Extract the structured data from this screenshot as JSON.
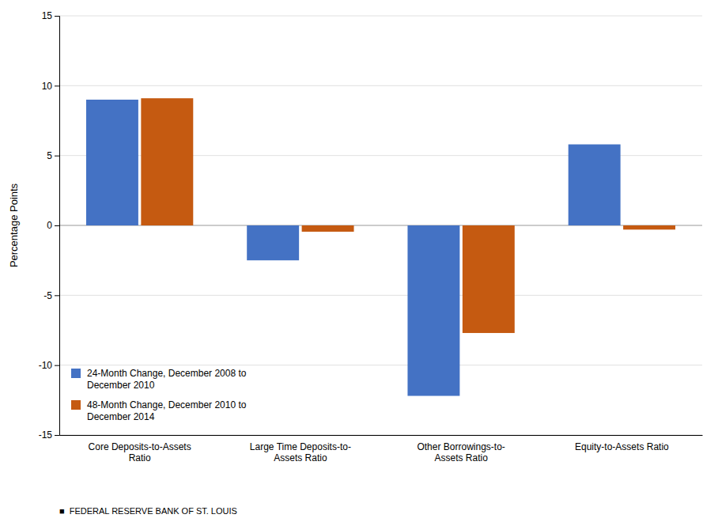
{
  "chart_data": {
    "type": "bar",
    "categories": [
      "Core Deposits-to-Assets\nRatio",
      "Large Time Deposits-to-\nAssets Ratio",
      "Other Borrowings-to-\nAssets Ratio",
      "Equity-to-Assets Ratio"
    ],
    "series": [
      {
        "name": "24-Month Change, December 2008 to\nDecember 2010",
        "color": "#4472c4",
        "values": [
          9.0,
          -2.5,
          -12.2,
          5.8
        ]
      },
      {
        "name": "48-Month Change, December 2010 to\nDecember 2014",
        "color": "#c55a11",
        "values": [
          9.1,
          -0.45,
          -7.7,
          -0.3
        ]
      }
    ],
    "ylabel": "Percentage Points",
    "ylim": [
      -15,
      15
    ],
    "yticks": [
      -15,
      -10,
      -5,
      0,
      5,
      10,
      15
    ],
    "grid": true,
    "legend": "lower left",
    "annotations": [
      "■  FEDERAL RESERVE BANK OF ST. LOUIS"
    ]
  }
}
